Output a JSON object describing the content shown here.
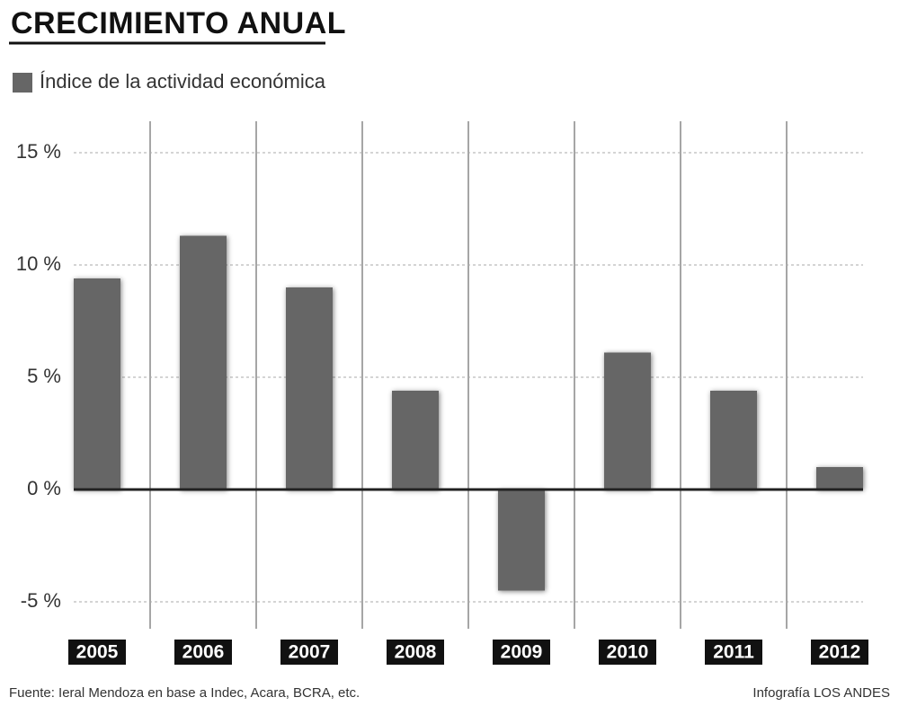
{
  "chart_data": {
    "type": "bar",
    "title": "CRECIMIENTO ANUAL",
    "categories": [
      "2005",
      "2006",
      "2007",
      "2008",
      "2009",
      "2010",
      "2011",
      "2012"
    ],
    "series": [
      {
        "name": "Índice de la actividad económica",
        "color": "#666666",
        "values": [
          9.4,
          11.3,
          9.0,
          4.4,
          -4.5,
          6.1,
          4.4,
          1.0
        ]
      }
    ],
    "ylim": [
      -6.2,
      16.4
    ],
    "yticks": [
      {
        "value": -5,
        "label": "-5 %"
      },
      {
        "value": 0,
        "label": "0 %"
      },
      {
        "value": 5,
        "label": "5 %"
      },
      {
        "value": 10,
        "label": "10 %"
      },
      {
        "value": 15,
        "label": "15 %"
      }
    ],
    "grid": true,
    "source": "Fuente: Ieral Mendoza en base a Indec, Acara, BCRA, etc.",
    "credit": "Infografía LOS ANDES"
  }
}
